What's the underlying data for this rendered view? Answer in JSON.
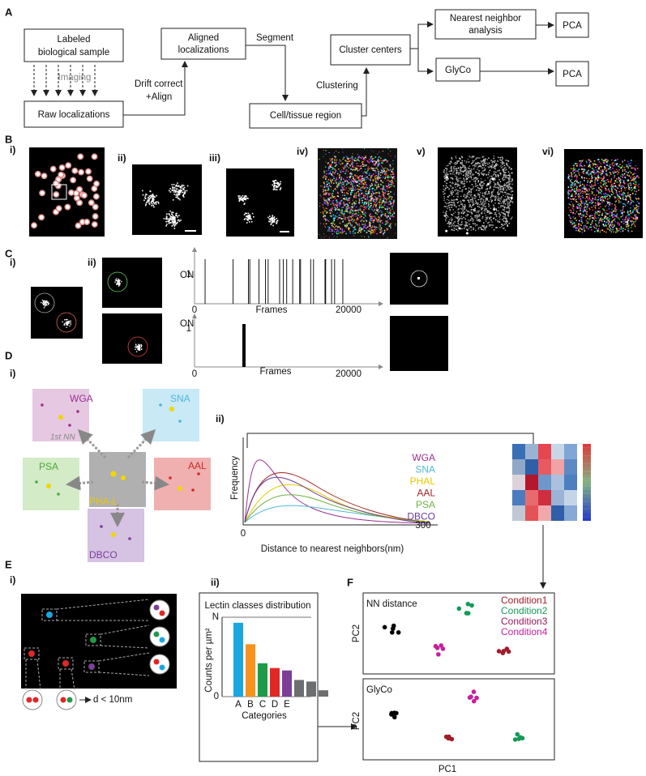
{
  "A": {
    "label": "A",
    "nodes": {
      "sample": [
        "Labeled",
        "biological sample"
      ],
      "raw": "Raw localizations",
      "aligned": [
        "Aligned",
        "localizations"
      ],
      "region": "Cell/tissue region",
      "centers": "Cluster centers",
      "nn": [
        "Nearest neighbor",
        "analysis"
      ],
      "glyco": "GlyCo",
      "pca1": "PCA",
      "pca2": "PCA"
    },
    "edges": {
      "imaging": "Imaging",
      "drift": [
        "Drift correct",
        "+Align"
      ],
      "segment": "Segment",
      "clustering": "Clustering"
    }
  },
  "B": {
    "label": "B",
    "sublabels": [
      "i)",
      "ii)",
      "iii)",
      "iv)",
      "v)",
      "vi)"
    ]
  },
  "C": {
    "label": "C",
    "sublabels": [
      "i)",
      "ii)"
    ],
    "traces": [
      {
        "y_label": "ON",
        "y_tick": 1,
        "x_ticks": [
          0,
          20000
        ],
        "x_label": "Frames"
      },
      {
        "y_label": "ON",
        "y_tick": 1,
        "x_ticks": [
          0,
          20000
        ],
        "x_label": "Frames"
      }
    ]
  },
  "D": {
    "label": "D",
    "sublabels": [
      "i)",
      "ii)"
    ],
    "lectins": [
      "WGA",
      "SNA",
      "PSA",
      "AAL",
      "DBCO"
    ],
    "center": "PHA-L",
    "nn_label": "1st NN",
    "plot": {
      "y_label": "Frequency",
      "x_label": "Distance to nearest neighbors(nm)",
      "x_ticks": [
        0,
        300
      ],
      "series": [
        {
          "name": "WGA",
          "color": "#9b2f8f"
        },
        {
          "name": "SNA",
          "color": "#4fb8d8"
        },
        {
          "name": "PHAL",
          "color": "#e8c800"
        },
        {
          "name": "AAL",
          "color": "#a0282a"
        },
        {
          "name": "PSA",
          "color": "#6cb33f"
        },
        {
          "name": "DBCO",
          "color": "#6a3d9a"
        }
      ]
    }
  },
  "E": {
    "label": "E",
    "sublabels": [
      "i)",
      "ii)"
    ],
    "distance_label": "d < 10nm"
  },
  "chart_data": {
    "type": "bar",
    "title": "Lectin classes distribution",
    "ylabel": "Counts per µm²",
    "xlabel": "Categories",
    "categories": [
      "A",
      "B",
      "C",
      "D",
      "E",
      null,
      null,
      null
    ],
    "values": [
      0.93,
      0.66,
      0.42,
      0.36,
      0.33,
      0.21,
      0.19,
      0.08
    ],
    "colors": [
      "#1aa7e0",
      "#f5931e",
      "#1f9a48",
      "#e02826",
      "#7b3f98",
      "#6d6e70",
      "#6d6e70",
      "#6d6e70"
    ],
    "ylim": [
      0,
      1
    ],
    "yticks": [
      0,
      {
        "value": 1,
        "label": "N"
      }
    ]
  },
  "F": {
    "label": "F",
    "plots": [
      {
        "title": "NN distance",
        "y_label": "PC2"
      },
      {
        "title": "GlyCo",
        "y_label": "PC2"
      }
    ],
    "x_label": "PC1",
    "legend": [
      {
        "name": "Condition1",
        "color": "#a01d2a"
      },
      {
        "name": "Condition2",
        "color": "#159a5a"
      },
      {
        "name": "Condition3",
        "color": "#9c1b5c"
      },
      {
        "name": "Condition4",
        "color": "#c8209a"
      }
    ]
  }
}
